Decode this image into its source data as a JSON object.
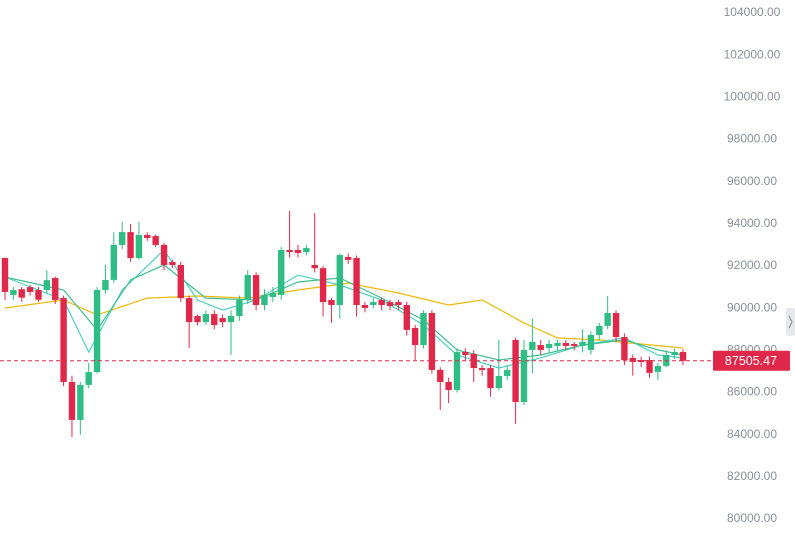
{
  "chart_data": {
    "type": "candlestick",
    "open": [
      92380,
      90630,
      90900,
      91000,
      90860,
      90860,
      91430,
      90480,
      86500,
      84700,
      86360,
      86970,
      90860,
      91340,
      93000,
      93610,
      92380,
      93470,
      93420,
      93000,
      92190,
      92050,
      90480,
      89630,
      89340,
      89720,
      89530,
      89340,
      89630,
      90390,
      91570,
      90150,
      90530,
      90630,
      92760,
      92760,
      92660,
      92050,
      91900,
      90390,
      90150,
      92430,
      92380,
      90150,
      90150,
      90390,
      90290,
      90290,
      90150,
      89060,
      88250,
      89770,
      87070,
      86500,
      86120,
      87920,
      87830,
      87160,
      87160,
      86210,
      86780,
      88490,
      85550,
      88020,
      88250,
      88110,
      88210,
      88350,
      88300,
      88210,
      88020,
      88730,
      89160,
      89770,
      88630,
      87640,
      87540,
      87540,
      86980,
      87260,
      87780,
      87920
    ],
    "high": [
      92400,
      91000,
      91000,
      91100,
      91000,
      91800,
      91500,
      90600,
      86800,
      86500,
      87400,
      91000,
      92050,
      93600,
      94100,
      94000,
      94100,
      93600,
      93500,
      93100,
      92300,
      92200,
      90600,
      89700,
      89900,
      89900,
      89700,
      89900,
      90600,
      91800,
      91700,
      90900,
      91000,
      92900,
      94610,
      93000,
      93000,
      94510,
      92000,
      90500,
      92600,
      92600,
      92500,
      90300,
      90500,
      90500,
      90400,
      90400,
      90300,
      89200,
      89900,
      89900,
      87200,
      86700,
      88100,
      88100,
      88000,
      87300,
      87300,
      88500,
      87300,
      88600,
      88500,
      89500,
      88500,
      88500,
      88500,
      88500,
      88400,
      89000,
      88900,
      89300,
      90580,
      89900,
      88800,
      87800,
      87700,
      87700,
      87400,
      88000,
      88100,
      88050
    ],
    "low": [
      90390,
      90400,
      90300,
      90600,
      90300,
      90700,
      90200,
      86300,
      83890,
      84000,
      86200,
      86900,
      90700,
      91200,
      92800,
      92200,
      92300,
      93200,
      92900,
      91800,
      91900,
      90300,
      88110,
      89200,
      89200,
      89000,
      89100,
      87780,
      89400,
      90200,
      89900,
      89900,
      90300,
      90400,
      92400,
      92400,
      92500,
      91700,
      89600,
      89300,
      89500,
      92100,
      89600,
      89800,
      90000,
      89900,
      89900,
      89900,
      88700,
      87540,
      88100,
      86900,
      85170,
      85500,
      86000,
      87500,
      86500,
      86800,
      85800,
      86100,
      86600,
      84510,
      85400,
      86900,
      87800,
      87900,
      88000,
      88000,
      88000,
      87900,
      87800,
      88500,
      89000,
      88400,
      87300,
      86800,
      87200,
      86700,
      86600,
      87200,
      87600,
      87300
    ],
    "close": [
      90770,
      90860,
      90500,
      90770,
      90400,
      91330,
      90390,
      86500,
      84700,
      86360,
      86970,
      90860,
      91340,
      93000,
      93610,
      92380,
      93470,
      93330,
      93000,
      92050,
      92050,
      90480,
      89340,
      89340,
      89720,
      89200,
      89340,
      89630,
      90390,
      91570,
      90150,
      90630,
      90720,
      92760,
      92660,
      92620,
      92850,
      91900,
      90290,
      90150,
      92520,
      92290,
      90150,
      90010,
      90290,
      90150,
      90100,
      90150,
      88970,
      88250,
      89770,
      87070,
      86500,
      86120,
      87920,
      87780,
      87160,
      87070,
      86210,
      86780,
      87070,
      85550,
      88020,
      88400,
      88020,
      88300,
      88350,
      88210,
      88210,
      88400,
      88730,
      89160,
      89770,
      88630,
      87540,
      87450,
      87450,
      86930,
      87260,
      87780,
      87920,
      87505.47
    ],
    "up_color": "#2ebd85",
    "down_color": "#e0294a",
    "lines": [
      {
        "color": "#f0b90b",
        "x": [
          0,
          7,
          11,
          17,
          23,
          29,
          35,
          41,
          47,
          53,
          57,
          62,
          66,
          71,
          76,
          81
        ],
        "values": [
          90010,
          90390,
          89680,
          90480,
          90580,
          90480,
          90860,
          91190,
          90720,
          90150,
          90390,
          89300,
          88590,
          88490,
          88300,
          88110
        ]
      },
      {
        "color": "#4fd1c5",
        "x": [
          0,
          7,
          10,
          14,
          19,
          23,
          26,
          30,
          35,
          40,
          45,
          50,
          54,
          59,
          64,
          69,
          74,
          78,
          81
        ],
        "values": [
          91480,
          90390,
          87920,
          90860,
          92760,
          90390,
          89910,
          90390,
          91570,
          91100,
          90390,
          89200,
          87780,
          87160,
          87640,
          88250,
          88590,
          87780,
          87640
        ]
      },
      {
        "color": "#3fbf8f",
        "x": [
          0,
          7,
          11,
          15,
          19,
          24,
          30,
          35,
          40,
          45,
          50,
          54,
          59,
          64,
          69,
          74,
          78,
          81
        ],
        "values": [
          91480,
          90860,
          88970,
          91340,
          92050,
          90480,
          90390,
          91240,
          91430,
          90480,
          89440,
          88020,
          87540,
          87780,
          88250,
          88490,
          88020,
          87780
        ]
      }
    ],
    "last_price": 87505.47,
    "ylim": [
      78860,
      104620
    ],
    "yticks": [
      {
        "value": 80000,
        "label": "80000.00"
      },
      {
        "value": 82000,
        "label": "82000.00"
      },
      {
        "value": 84000,
        "label": "84000.00"
      },
      {
        "value": 86000,
        "label": "86000.00"
      },
      {
        "value": 88000,
        "label": "88000.00"
      },
      {
        "value": 90000,
        "label": "90000.00"
      },
      {
        "value": 92000,
        "label": "92000.00"
      },
      {
        "value": 94000,
        "label": "94000.00"
      },
      {
        "value": 96000,
        "label": "96000.00"
      },
      {
        "value": 98000,
        "label": "98000.00"
      },
      {
        "value": 100000,
        "label": "100000.00"
      },
      {
        "value": 102000,
        "label": "102000.00"
      },
      {
        "value": 104000,
        "label": "104000.00"
      }
    ]
  }
}
